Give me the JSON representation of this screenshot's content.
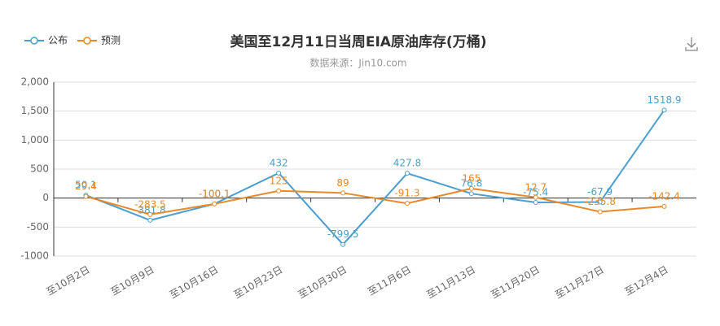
{
  "chart_data": {
    "type": "line",
    "title": "美国至12月11日当周EIA原油库存(万桶)",
    "subtitle": "数据来源：Jin10.com",
    "categories": [
      "至10月2日",
      "至10月9日",
      "至10月16日",
      "至10月23日",
      "至10月30日",
      "至11月6日",
      "至11月13日",
      "至11月20日",
      "至11月27日",
      "至12月4日"
    ],
    "series": [
      {
        "name": "公布",
        "color": "#4a9fd0",
        "values": [
          50.1,
          -381.8,
          -100.1,
          432,
          -799.5,
          427.8,
          76.8,
          -75.4,
          -67.9,
          1518.9
        ]
      },
      {
        "name": "预测",
        "color": "#e8892a",
        "values": [
          29.4,
          -283.5,
          -100.1,
          125,
          89,
          -91.3,
          165,
          12.7,
          -235.8,
          -142.4
        ]
      }
    ],
    "ylim": [
      -1000,
      2000
    ],
    "yticks": [
      -1000,
      -500,
      0,
      500,
      {
        "value": 1000,
        "label": "1,000"
      },
      {
        "value": 1500,
        "label": "1,500"
      },
      {
        "value": 2000,
        "label": "2,000"
      }
    ],
    "grid": true,
    "legend": "top-left"
  }
}
